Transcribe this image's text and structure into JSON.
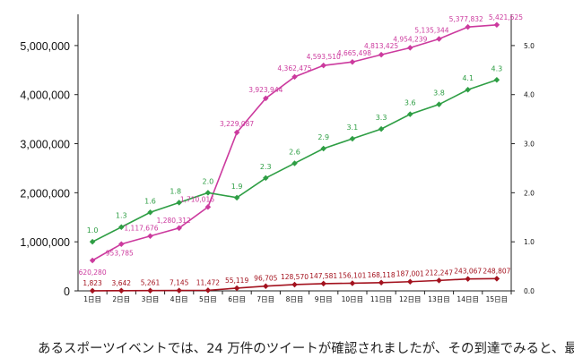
{
  "chart_data": {
    "type": "line",
    "categories": [
      "1日目",
      "2日目",
      "3日目",
      "4日目",
      "5日目",
      "6日目",
      "7日目",
      "8日目",
      "9日目",
      "10日目",
      "11日目",
      "12日目",
      "13日目",
      "14日目",
      "15日目"
    ],
    "series": [
      {
        "name": "cumulative",
        "axis": "left",
        "color": "#cc3a9e",
        "values": [
          620280,
          953785,
          1117676,
          1280312,
          1710016,
          3229087,
          3923944,
          4362475,
          4593510,
          4665498,
          4813425,
          4954239,
          5135344,
          5377832,
          5421625
        ],
        "labels": [
          "620,280",
          "953,785",
          "1,117,676",
          "1,280,312",
          "1,710,016",
          "3,229,087",
          "3,923,944",
          "4,362,475",
          "4,593,510",
          "4,665,498",
          "4,813,425",
          "4,954,239",
          "5,135,344",
          "5,377,832",
          "5,421,625"
        ]
      },
      {
        "name": "ratio",
        "axis": "right",
        "color": "#2e9e44",
        "values": [
          1.0,
          1.3,
          1.6,
          1.8,
          2.0,
          1.9,
          2.3,
          2.6,
          2.9,
          3.1,
          3.3,
          3.6,
          3.8,
          4.1,
          4.3
        ],
        "labels": [
          "1.0",
          "1.3",
          "1.6",
          "1.8",
          "2.0",
          "1.9",
          "2.3",
          "2.6",
          "2.9",
          "3.1",
          "3.3",
          "3.6",
          "3.8",
          "4.1",
          "4.3"
        ]
      },
      {
        "name": "daily",
        "axis": "left",
        "color": "#a3121e",
        "values": [
          1823,
          3642,
          5261,
          7145,
          11472,
          55119,
          96705,
          128570,
          147581,
          156101,
          168118,
          187001,
          212247,
          243067,
          248807
        ],
        "labels": [
          "1,823",
          "3,642",
          "5,261",
          "7,145",
          "11,472",
          "55,119",
          "96,705",
          "128,570",
          "147,581",
          "156,101",
          "168,118",
          "187,001",
          "212,247",
          "243,067",
          "248,807"
        ]
      }
    ],
    "y_left": {
      "ylim": [
        0,
        5600000
      ],
      "ticks": [
        0,
        1000000,
        2000000,
        3000000,
        4000000,
        5000000
      ],
      "tick_labels": [
        "0",
        "1,000,000",
        "2,000,000",
        "3,000,000",
        "4,000,000",
        "5,000,000"
      ]
    },
    "y_right": {
      "ylim": [
        0,
        5.6
      ],
      "ticks": [
        0,
        1,
        2,
        3,
        4,
        5
      ],
      "tick_labels": [
        "0.0",
        "1.0",
        "2.0",
        "3.0",
        "4.0",
        "5.0"
      ]
    },
    "grid": false,
    "title": "",
    "xlabel": "",
    "ylabel": ""
  },
  "caption": {
    "text": "あるスポーツイベントでは、24 万件のツイートが確認されましたが、その到達でみると、最"
  }
}
